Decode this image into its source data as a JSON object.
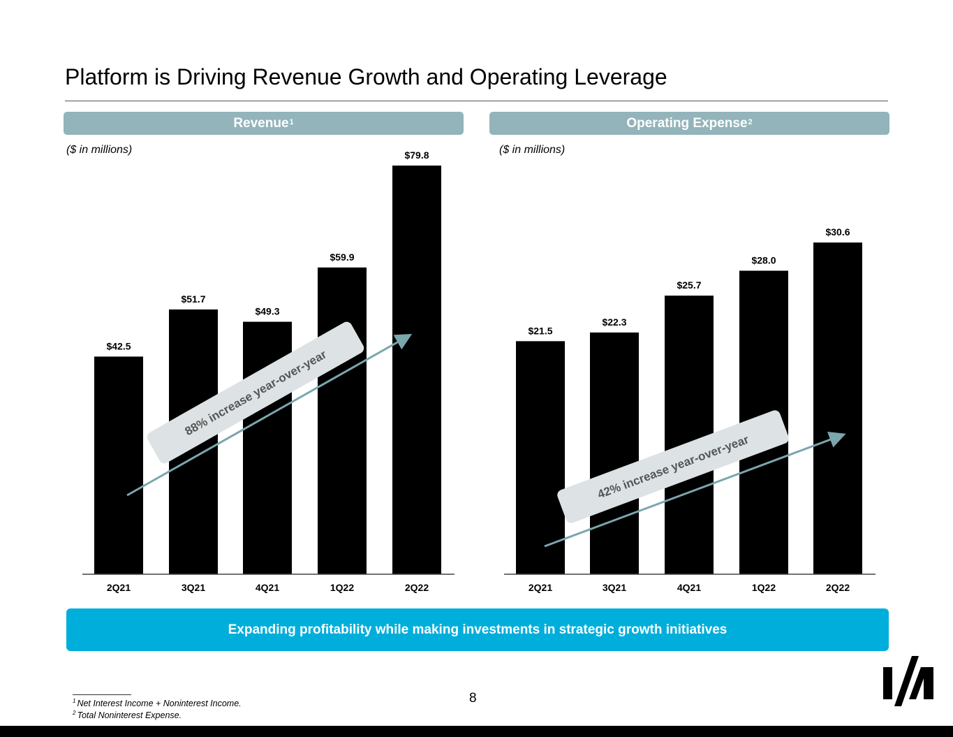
{
  "page": {
    "title": "Platform is Driving Revenue Growth and Operating Leverage",
    "callout": "Expanding profitability while making investments in strategic growth initiatives",
    "page_number": "8",
    "footnotes": [
      {
        "mark": "1",
        "text": "Net Interest Income + Noninterest Income."
      },
      {
        "mark": "2",
        "text": "Total Noninterest Expense."
      }
    ],
    "colors": {
      "bar": "#000000",
      "header": "#92b4ba",
      "arrow": "#7aa6ae",
      "annotation_box": "#dde3e5",
      "callout": "#00aedb"
    }
  },
  "chart_data": [
    {
      "type": "bar",
      "title": "Revenue",
      "title_superscript": "1",
      "unit_note": "($ in millions)",
      "categories": [
        "2Q21",
        "3Q21",
        "4Q21",
        "1Q22",
        "2Q22"
      ],
      "values": [
        42.5,
        51.7,
        49.3,
        59.9,
        79.8
      ],
      "value_labels": [
        "$42.5",
        "$51.7",
        "$49.3",
        "$59.9",
        "$79.8"
      ],
      "ylim": [
        0,
        79.8
      ],
      "annotation": "88% increase year-over-year",
      "grid": false,
      "legend": "none"
    },
    {
      "type": "bar",
      "title": "Operating Expense",
      "title_superscript": "2",
      "unit_note": "($ in millions)",
      "categories": [
        "2Q21",
        "3Q21",
        "4Q21",
        "1Q22",
        "2Q22"
      ],
      "values": [
        21.5,
        22.3,
        25.7,
        28.0,
        30.6
      ],
      "value_labels": [
        "$21.5",
        "$22.3",
        "$25.7",
        "$28.0",
        "$30.6"
      ],
      "ylim": [
        0,
        37.7
      ],
      "annotation": "42% increase year-over-year",
      "grid": false,
      "legend": "none"
    }
  ]
}
